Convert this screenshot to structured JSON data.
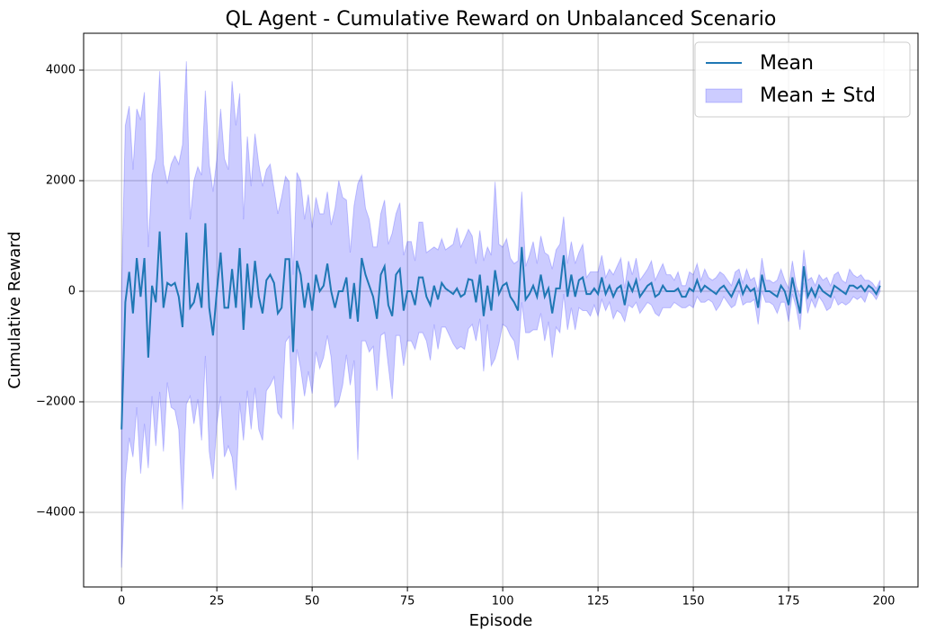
{
  "chart_data": {
    "type": "line-band",
    "title": "QL Agent - Cumulative Reward on Unbalanced Scenario",
    "xlabel": "Episode",
    "ylabel": "Cumulative Reward",
    "x": [
      0,
      1,
      2,
      3,
      4,
      5,
      6,
      7,
      8,
      9,
      10,
      11,
      12,
      13,
      14,
      15,
      16,
      17,
      18,
      19,
      20,
      21,
      22,
      23,
      24,
      25,
      26,
      27,
      28,
      29,
      30,
      31,
      32,
      33,
      34,
      35,
      36,
      37,
      38,
      39,
      40,
      41,
      42,
      43,
      44,
      45,
      46,
      47,
      48,
      49,
      50,
      51,
      52,
      53,
      54,
      55,
      56,
      57,
      58,
      59,
      60,
      61,
      62,
      63,
      64,
      65,
      66,
      67,
      68,
      69,
      70,
      71,
      72,
      73,
      74,
      75,
      76,
      77,
      78,
      79,
      80,
      81,
      82,
      83,
      84,
      85,
      86,
      87,
      88,
      89,
      90,
      91,
      92,
      93,
      94,
      95,
      96,
      97,
      98,
      99,
      100,
      101,
      102,
      103,
      104,
      105,
      106,
      107,
      108,
      109,
      110,
      111,
      112,
      113,
      114,
      115,
      116,
      117,
      118,
      119,
      120,
      121,
      122,
      123,
      124,
      125,
      126,
      127,
      128,
      129,
      130,
      131,
      132,
      133,
      134,
      135,
      136,
      137,
      138,
      139,
      140,
      141,
      142,
      143,
      144,
      145,
      146,
      147,
      148,
      149,
      150,
      151,
      152,
      153,
      154,
      155,
      156,
      157,
      158,
      159,
      160,
      161,
      162,
      163,
      164,
      165,
      166,
      167,
      168,
      169,
      170,
      171,
      172,
      173,
      174,
      175,
      176,
      177,
      178,
      179,
      180,
      181,
      182,
      183,
      184,
      185,
      186,
      187,
      188,
      189,
      190,
      191,
      192,
      193,
      194,
      195,
      196,
      197,
      198,
      199
    ],
    "series": [
      {
        "name": "Mean",
        "color": "#1f77b4",
        "values": [
          -2500,
          -200,
          350,
          -400,
          600,
          -100,
          600,
          -1200,
          100,
          -200,
          1080,
          -300,
          150,
          100,
          150,
          -100,
          -650,
          1060,
          -300,
          -200,
          150,
          -300,
          1230,
          -300,
          -800,
          0,
          700,
          -300,
          -300,
          400,
          -300,
          780,
          -700,
          500,
          -300,
          550,
          -100,
          -400,
          200,
          300,
          150,
          -400,
          -300,
          580,
          580,
          -1100,
          550,
          300,
          -300,
          150,
          -350,
          300,
          0,
          100,
          500,
          0,
          -300,
          0,
          0,
          250,
          -500,
          150,
          -550,
          600,
          300,
          100,
          -100,
          -500,
          300,
          450,
          -250,
          -450,
          300,
          400,
          -350,
          0,
          0,
          -250,
          250,
          250,
          -100,
          -250,
          100,
          -150,
          150,
          50,
          0,
          -50,
          50,
          -100,
          -50,
          220,
          200,
          -200,
          300,
          -450,
          100,
          -350,
          380,
          -50,
          100,
          150,
          -100,
          -200,
          -350,
          800,
          -150,
          -50,
          100,
          -100,
          300,
          -100,
          50,
          -400,
          50,
          50,
          650,
          -100,
          300,
          -100,
          200,
          250,
          -50,
          -50,
          50,
          -50,
          250,
          -50,
          100,
          -100,
          50,
          100,
          -250,
          150,
          0,
          200,
          -100,
          0,
          100,
          150,
          -100,
          -50,
          100,
          0,
          0,
          0,
          50,
          -100,
          -100,
          50,
          0,
          200,
          0,
          100,
          50,
          0,
          -50,
          50,
          100,
          0,
          -100,
          50,
          200,
          -50,
          100,
          0,
          50,
          -300,
          300,
          0,
          0,
          -50,
          -100,
          100,
          0,
          -250,
          250,
          -100,
          -400,
          450,
          -100,
          50,
          -100,
          100,
          0,
          -50,
          -100,
          100,
          50,
          0,
          -50,
          100,
          100,
          50,
          100,
          0,
          100,
          50,
          -50,
          100
        ]
      },
      {
        "name": "Mean ± Std",
        "color": "#0000ff",
        "values": [
          2500,
          3200,
          3000,
          2600,
          2700,
          3200,
          3000,
          2000,
          2000,
          2600,
          2900,
          2600,
          1800,
          2200,
          2300,
          2400,
          3300,
          3100,
          1600,
          2200,
          2100,
          2400,
          2400,
          2600,
          2600,
          2400,
          2600,
          2700,
          2500,
          3400,
          3300,
          2800,
          2000,
          2300,
          2200,
          2300,
          2400,
          2300,
          2000,
          2000,
          1700,
          1800,
          2000,
          1500,
          1400,
          1400,
          1600,
          1700,
          1600,
          1600,
          1500,
          1400,
          1400,
          1300,
          1300,
          1200,
          1800,
          2000,
          1700,
          1400,
          1200,
          1400,
          2500,
          1500,
          1200,
          1200,
          900,
          1300,
          1100,
          1200,
          1100,
          1500,
          1100,
          1200,
          1000,
          900,
          900,
          800,
          1000,
          1000,
          800,
          1000,
          700,
          900,
          800,
          700,
          800,
          900,
          1100,
          900,
          1000,
          900,
          800,
          700,
          800,
          1000,
          700,
          1000,
          1600,
          900,
          700,
          800,
          700,
          700,
          900,
          1000,
          600,
          700,
          800,
          600,
          700,
          800,
          600,
          800,
          700,
          800,
          700,
          600,
          600,
          600,
          500,
          600,
          300,
          400,
          300,
          400,
          400,
          300,
          300,
          400,
          400,
          500,
          300,
          400,
          300,
          400,
          300,
          300,
          300,
          400,
          300,
          400,
          400,
          300,
          300,
          200,
          300,
          200,
          200,
          300,
          300,
          300,
          200,
          300,
          200,
          200,
          300,
          300,
          200,
          200,
          200,
          300,
          200,
          200,
          300,
          200,
          200,
          300,
          300,
          200,
          200,
          200,
          300,
          300,
          200,
          300,
          300,
          200,
          300,
          300,
          300,
          200,
          200,
          200,
          200,
          300,
          200,
          200,
          300,
          200,
          200,
          300,
          200,
          200,
          200,
          200,
          100,
          100,
          100,
          100
        ]
      }
    ],
    "xlim": [
      -9.95,
      208.95
    ],
    "ylim": [
      -5350,
      4667
    ],
    "xticks": [
      0,
      25,
      50,
      75,
      100,
      125,
      150,
      175,
      200
    ],
    "yticks": [
      {
        "value": -4000,
        "label": "−4000"
      },
      {
        "value": -2000,
        "label": "−2000"
      },
      0,
      2000,
      4000
    ],
    "grid": true,
    "legend": "upper right"
  }
}
